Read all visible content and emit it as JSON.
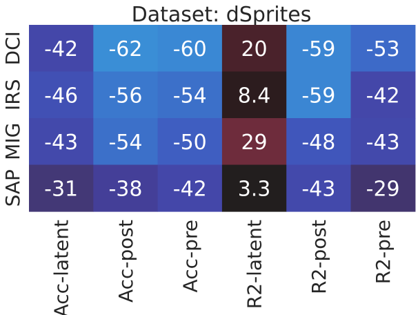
{
  "chart_data": {
    "type": "heatmap",
    "title": "Dataset: dSprites",
    "xlabel": "",
    "ylabel": "",
    "x_categories": [
      "Acc-latent",
      "Acc-post",
      "Acc-pre",
      "R2-latent",
      "R2-post",
      "R2-pre"
    ],
    "y_categories": [
      "DCI",
      "IRS",
      "MIG",
      "SAP"
    ],
    "values": [
      [
        -42,
        -62,
        -60,
        20,
        -59,
        -53
      ],
      [
        -46,
        -56,
        -54,
        8.4,
        -59,
        -42
      ],
      [
        -43,
        -54,
        -50,
        29,
        -48,
        -43
      ],
      [
        -31,
        -38,
        -42,
        3.3,
        -43,
        -29
      ]
    ],
    "cell_labels": [
      [
        "-42",
        "-62",
        "-60",
        "20",
        "-59",
        "-53"
      ],
      [
        "-46",
        "-56",
        "-54",
        "8.4",
        "-59",
        "-42"
      ],
      [
        "-43",
        "-54",
        "-50",
        "29",
        "-48",
        "-43"
      ],
      [
        "-31",
        "-38",
        "-42",
        "3.3",
        "-43",
        "-29"
      ]
    ],
    "colorbar": false,
    "colors": {
      "-62": "#3a8ed6",
      "-60": "#3a88d4",
      "-59": "#3b86d3",
      "-56": "#3b78cd",
      "-54": "#3c70c9",
      "-53": "#3d6ac8",
      "-50": "#3f5ec1",
      "-48": "#4056bb",
      "-46": "#4150b4",
      "-43": "#4349ab",
      "-42": "#4447a9",
      "-38": "#443f98",
      "-31": "#433876",
      "-29": "#42356e",
      "3.3": "#221e1e",
      "8.4": "#2c1c1e",
      "20": "#4a222b",
      "29": "#6e2c3c"
    }
  }
}
